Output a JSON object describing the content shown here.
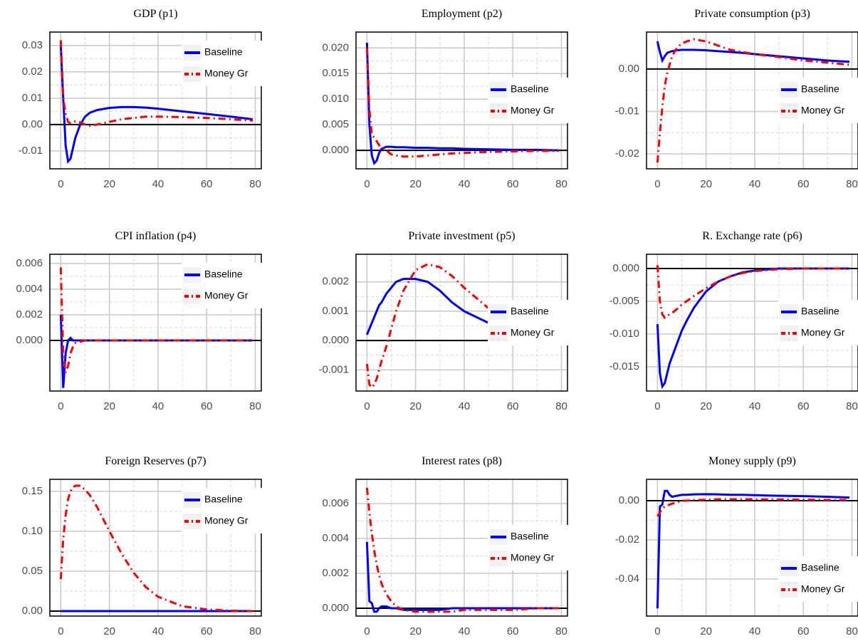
{
  "chart_data": [
    {
      "type": "line",
      "title": "GDP (p1)",
      "x": [
        0,
        1,
        2,
        3,
        4,
        5,
        6,
        8,
        10,
        12,
        15,
        20,
        25,
        30,
        35,
        40,
        50,
        60,
        70,
        79
      ],
      "series": [
        {
          "name": "Baseline",
          "color": "#0000ff",
          "linestyle": "solid",
          "values": [
            0.03,
            0.01,
            -0.008,
            -0.014,
            -0.013,
            -0.009,
            -0.005,
            0.0,
            0.003,
            0.0045,
            0.0055,
            0.0063,
            0.0066,
            0.0066,
            0.0064,
            0.006,
            0.005,
            0.004,
            0.003,
            0.002
          ]
        },
        {
          "name": "Money Gr",
          "color": "#ff0000",
          "linestyle": "dashdot",
          "values": [
            0.032,
            0.01,
            0.004,
            0.001,
            0.0005,
            0.001,
            0.0012,
            0.0008,
            0,
            -0.0005,
            0,
            0.001,
            0.002,
            0.0025,
            0.003,
            0.003,
            0.0028,
            0.0025,
            0.002,
            0.0015
          ]
        }
      ],
      "xlim": [
        -4.5,
        82.5
      ],
      "xticks": [
        0,
        20,
        40,
        60,
        80
      ],
      "ylim": [
        -0.0168,
        0.0351
      ],
      "yticks": [
        -0.01,
        {
          "value": 0,
          "label": "0.00"
        },
        0.01,
        0.02,
        0.03
      ],
      "grid": true,
      "legend": "upper right"
    },
    {
      "type": "line",
      "title": "Employment (p2)",
      "x": [
        0,
        1,
        2,
        3,
        4,
        5,
        6,
        8,
        10,
        12,
        15,
        20,
        25,
        30,
        35,
        40,
        50,
        60,
        70,
        79
      ],
      "series": [
        {
          "name": "Baseline",
          "color": "#0000ff",
          "linestyle": "solid",
          "values": [
            0.021,
            0.005,
            -0.001,
            -0.0025,
            -0.002,
            -0.0005,
            0.0003,
            0.0007,
            0.0007,
            0.0006,
            0.0006,
            0.0005,
            0.0005,
            0.0004,
            0.0004,
            0.0003,
            0.0002,
            0.0001,
            0.0001,
            0.0
          ]
        },
        {
          "name": "Money Gr",
          "color": "#ff0000",
          "linestyle": "dashdot",
          "values": [
            0.02,
            0.008,
            0.003,
            0.0025,
            0.0018,
            0.001,
            0.0005,
            0,
            -0.0008,
            -0.001,
            -0.0012,
            -0.0012,
            -0.001,
            -0.0008,
            -0.0006,
            -0.0005,
            -0.0003,
            -0.0002,
            -0.0001,
            -0.0001
          ]
        }
      ],
      "xlim": [
        -4.5,
        82.5
      ],
      "xticks": [
        0,
        20,
        40,
        60,
        80
      ],
      "ylim": [
        -0.0036,
        0.0231
      ],
      "yticks": [
        {
          "value": 0,
          "label": "0.000"
        },
        0.005,
        {
          "value": 0.01,
          "label": "0.010"
        },
        0.015,
        {
          "value": 0.02,
          "label": "0.020"
        }
      ],
      "grid": true,
      "legend": "center right"
    },
    {
      "type": "line",
      "title": "Private consumption (p3)",
      "x": [
        0,
        1,
        2,
        3,
        4,
        5,
        6,
        8,
        10,
        12,
        15,
        20,
        25,
        30,
        35,
        40,
        50,
        60,
        70,
        79
      ],
      "series": [
        {
          "name": "Baseline",
          "color": "#0000ff",
          "linestyle": "solid",
          "values": [
            0.0065,
            0.004,
            0.002,
            0.003,
            0.0038,
            0.004,
            0.0042,
            0.0044,
            0.0045,
            0.0045,
            0.0045,
            0.0044,
            0.0042,
            0.004,
            0.0038,
            0.0035,
            0.003,
            0.0025,
            0.002,
            0.0017
          ]
        },
        {
          "name": "Money Gr",
          "color": "#ff0000",
          "linestyle": "dashdot",
          "values": [
            -0.022,
            -0.015,
            -0.009,
            -0.004,
            -0.001,
            0.001,
            0.003,
            0.005,
            0.006,
            0.0065,
            0.007,
            0.0065,
            0.0055,
            0.0045,
            0.004,
            0.0035,
            0.0028,
            0.002,
            0.0015,
            0.001
          ]
        }
      ],
      "xlim": [
        -4.5,
        82.5
      ],
      "xticks": [
        0,
        20,
        40,
        60,
        80
      ],
      "ylim": [
        -0.0235,
        0.0087
      ],
      "yticks": [
        -0.02,
        -0.01,
        {
          "value": 0,
          "label": "0.00"
        }
      ],
      "grid": true,
      "legend": "center right"
    },
    {
      "type": "line",
      "title": "CPI inflation (p4)",
      "x": [
        0,
        1,
        2,
        3,
        4,
        5,
        6,
        8,
        10,
        12,
        15,
        20,
        25,
        30,
        35,
        40,
        50,
        60,
        70,
        79
      ],
      "series": [
        {
          "name": "Baseline",
          "color": "#0000ff",
          "linestyle": "solid",
          "values": [
            0.002,
            -0.0037,
            -0.001,
            0,
            0.0002,
            0,
            0,
            0,
            0,
            0,
            0,
            0,
            0,
            0,
            0,
            0,
            0,
            0,
            0,
            0
          ]
        },
        {
          "name": "Money Gr",
          "color": "#ff0000",
          "linestyle": "dashdot",
          "values": [
            0.0057,
            -0.001,
            -0.0025,
            -0.002,
            -0.001,
            -0.0005,
            -0.0002,
            -0.0001,
            0,
            0,
            0,
            0,
            0,
            0,
            0,
            0,
            0,
            0,
            0,
            0
          ]
        }
      ],
      "xlim": [
        -4.5,
        82.5
      ],
      "xticks": [
        0,
        20,
        40,
        60,
        80
      ],
      "ylim": [
        -0.00394,
        0.00672
      ],
      "yticks": [
        {
          "value": 0,
          "label": "0.000"
        },
        0.002,
        0.004,
        0.006
      ],
      "grid": true,
      "legend": "upper right"
    },
    {
      "type": "line",
      "title": "Private investment (p5)",
      "x": [
        0,
        1,
        2,
        3,
        4,
        5,
        6,
        8,
        10,
        12,
        15,
        20,
        25,
        30,
        35,
        40,
        50,
        60,
        70,
        79
      ],
      "series": [
        {
          "name": "Baseline",
          "color": "#0000ff",
          "linestyle": "solid",
          "values": [
            0.0002,
            0.0004,
            0.0006,
            0.0008,
            0.001,
            0.0012,
            0.0013,
            0.0016,
            0.0018,
            0.002,
            0.0021,
            0.0021,
            0.002,
            0.0017,
            0.0013,
            0.001,
            0.0006,
            0.0003,
            0.0001,
            0.0
          ]
        },
        {
          "name": "Money Gr",
          "color": "#ff0000",
          "linestyle": "dashdot",
          "values": [
            -0.0008,
            -0.0015,
            -0.0016,
            -0.0015,
            -0.0013,
            -0.001,
            -0.0007,
            -0.0002,
            0.0004,
            0.001,
            0.0017,
            0.0024,
            0.0026,
            0.0025,
            0.0022,
            0.0018,
            0.0011,
            0.0006,
            0.0003,
            0.0001
          ]
        }
      ],
      "xlim": [
        -4.5,
        82.5
      ],
      "xticks": [
        0,
        20,
        40,
        60,
        80
      ],
      "ylim": [
        -0.00172,
        0.00294
      ],
      "yticks": [
        -0.001,
        {
          "value": 0,
          "label": "0.000"
        },
        0.001,
        0.002
      ],
      "grid": true,
      "legend": "center right"
    },
    {
      "type": "line",
      "title": "R. Exchange rate (p6)",
      "x": [
        0,
        1,
        2,
        3,
        4,
        5,
        6,
        8,
        10,
        12,
        15,
        20,
        25,
        30,
        35,
        40,
        50,
        60,
        70,
        79
      ],
      "series": [
        {
          "name": "Baseline",
          "color": "#0000ff",
          "linestyle": "solid",
          "values": [
            -0.0085,
            -0.016,
            -0.018,
            -0.0175,
            -0.016,
            -0.0145,
            -0.0135,
            -0.0115,
            -0.0095,
            -0.008,
            -0.006,
            -0.0035,
            -0.002,
            -0.0012,
            -0.0006,
            -0.0003,
            0,
            0,
            0,
            0
          ]
        },
        {
          "name": "Money Gr",
          "color": "#ff0000",
          "linestyle": "dashdot",
          "values": [
            0.0005,
            -0.005,
            -0.007,
            -0.0075,
            -0.0072,
            -0.007,
            -0.0068,
            -0.0062,
            -0.0055,
            -0.005,
            -0.0042,
            -0.003,
            -0.002,
            -0.0012,
            -0.0007,
            -0.0004,
            -0.0001,
            0,
            0,
            0
          ]
        }
      ],
      "xlim": [
        -4.5,
        82.5
      ],
      "xticks": [
        0,
        20,
        40,
        60,
        80
      ],
      "ylim": [
        -0.0187,
        0.00217
      ],
      "yticks": [
        -0.015,
        {
          "value": -0.01,
          "label": "-0.010"
        },
        -0.005,
        {
          "value": 0,
          "label": "0.000"
        }
      ],
      "grid": true,
      "legend": "center right"
    },
    {
      "type": "line",
      "title": "Foreign Reserves (p7)",
      "x": [
        0,
        1,
        2,
        3,
        4,
        5,
        6,
        8,
        10,
        12,
        15,
        20,
        25,
        30,
        35,
        40,
        50,
        60,
        70,
        79
      ],
      "series": [
        {
          "name": "Baseline",
          "color": "#0000ff",
          "linestyle": "solid",
          "values": [
            0,
            0,
            0,
            0,
            0,
            0,
            0,
            0,
            0,
            0,
            0,
            0,
            0,
            0,
            0,
            0,
            0,
            0,
            0,
            0
          ]
        },
        {
          "name": "Money Gr",
          "color": "#ff0000",
          "linestyle": "dashdot",
          "values": [
            0.04,
            0.09,
            0.12,
            0.14,
            0.15,
            0.155,
            0.157,
            0.157,
            0.152,
            0.145,
            0.13,
            0.1,
            0.072,
            0.048,
            0.03,
            0.018,
            0.006,
            0.002,
            0.0005,
            0
          ]
        }
      ],
      "xlim": [
        -4.5,
        82.5
      ],
      "xticks": [
        0,
        20,
        40,
        60,
        80
      ],
      "ylim": [
        -0.00625,
        0.165
      ],
      "yticks": [
        {
          "value": 0,
          "label": "0.00"
        },
        0.05,
        {
          "value": 0.1,
          "label": "0.10"
        },
        0.15
      ],
      "grid": true,
      "legend": "upper right"
    },
    {
      "type": "line",
      "title": "Interest rates (p8)",
      "x": [
        0,
        1,
        2,
        3,
        4,
        5,
        6,
        8,
        10,
        12,
        15,
        20,
        25,
        30,
        35,
        40,
        50,
        60,
        70,
        79
      ],
      "series": [
        {
          "name": "Baseline",
          "color": "#0000ff",
          "linestyle": "solid",
          "values": [
            0.0038,
            0.0004,
            0.0003,
            -0.0002,
            -0.0002,
            0,
            0.0001,
            0.0001,
            0,
            0,
            -0.0001,
            -0.0001,
            -0.0001,
            -0.0001,
            0,
            0,
            0,
            0,
            0,
            0
          ]
        },
        {
          "name": "Money Gr",
          "color": "#ff0000",
          "linestyle": "dashdot",
          "values": [
            0.0069,
            0.0055,
            0.0043,
            0.0033,
            0.0025,
            0.0019,
            0.0014,
            0.0008,
            0.0004,
            0.0001,
            -0.0001,
            -0.0002,
            -0.0002,
            -0.0002,
            -0.0002,
            -0.0001,
            -0.0001,
            -0.0001,
            0,
            0
          ]
        }
      ],
      "xlim": [
        -4.5,
        82.5
      ],
      "xticks": [
        0,
        20,
        40,
        60,
        80
      ],
      "ylim": [
        -0.00045,
        0.00739
      ],
      "yticks": [
        {
          "value": 0,
          "label": "0.000"
        },
        0.002,
        0.004,
        0.006
      ],
      "grid": true,
      "legend": "center right"
    },
    {
      "type": "line",
      "title": "Money supply (p9)",
      "x": [
        0,
        1,
        2,
        3,
        4,
        5,
        6,
        8,
        10,
        12,
        15,
        20,
        25,
        30,
        35,
        40,
        50,
        60,
        70,
        79
      ],
      "series": [
        {
          "name": "Baseline",
          "color": "#0000ff",
          "linestyle": "solid",
          "values": [
            -0.055,
            -0.003,
            -0.002,
            0.005,
            0.005,
            0.003,
            0.002,
            0.0025,
            0.003,
            0.003,
            0.0032,
            0.0033,
            0.0032,
            0.003,
            0.003,
            0.0028,
            0.0025,
            0.0023,
            0.002,
            0.0016
          ]
        },
        {
          "name": "Money Gr",
          "color": "#ff0000",
          "linestyle": "dashdot",
          "values": [
            -0.008,
            -0.006,
            -0.004,
            -0.003,
            -0.0025,
            -0.002,
            -0.0015,
            -0.001,
            0,
            0,
            0.0003,
            0.0005,
            0.0007,
            0.0007,
            0.0007,
            0.0007,
            0.0006,
            0.0005,
            0.0004,
            0.0003
          ]
        }
      ],
      "xlim": [
        -4.5,
        82.5
      ],
      "xticks": [
        0,
        20,
        40,
        60,
        80
      ],
      "ylim": [
        -0.0589,
        0.0109
      ],
      "yticks": [
        -0.04,
        -0.02,
        {
          "value": 0,
          "label": "0.00"
        }
      ],
      "grid": true,
      "legend": "lower right"
    }
  ]
}
